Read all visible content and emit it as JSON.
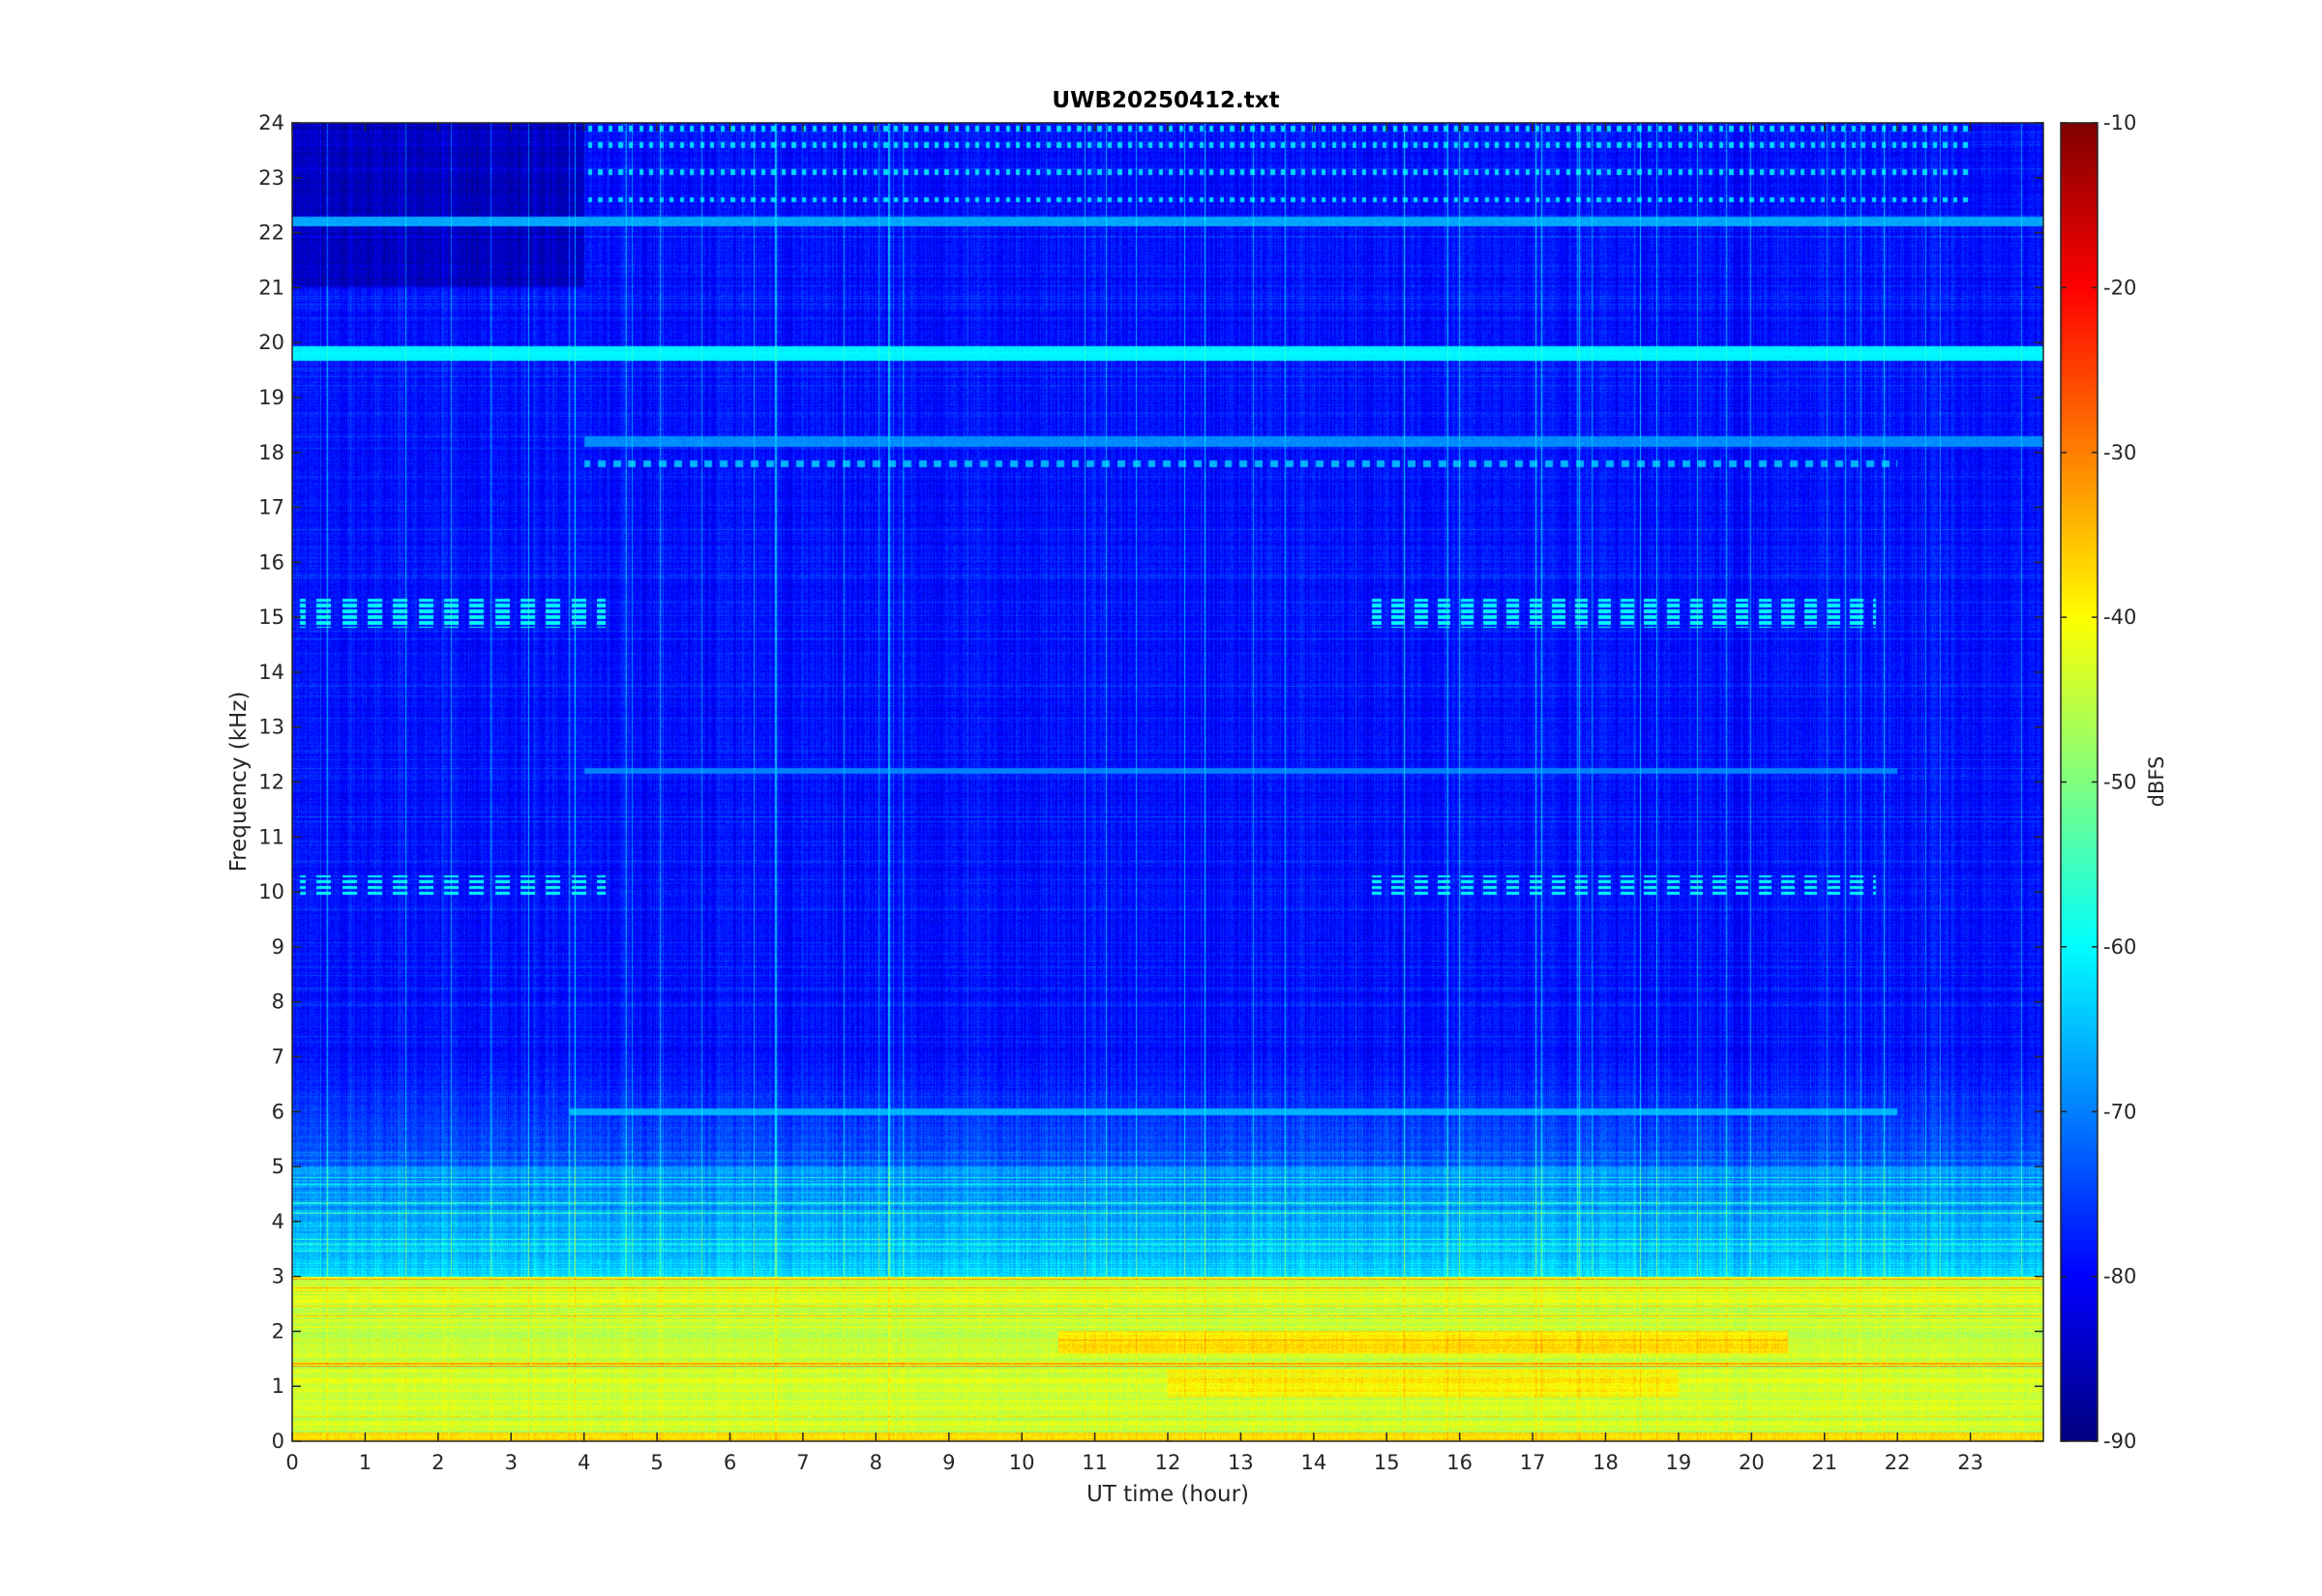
{
  "chart_data": {
    "type": "heatmap",
    "title": "UWB20250412.txt",
    "xlabel": "UT time (hour)",
    "ylabel": "Frequency (kHz)",
    "xlim": [
      0,
      24
    ],
    "ylim": [
      0,
      24
    ],
    "x_ticks": [
      "0",
      "1",
      "2",
      "3",
      "4",
      "5",
      "6",
      "7",
      "8",
      "9",
      "10",
      "11",
      "12",
      "13",
      "14",
      "15",
      "16",
      "17",
      "18",
      "19",
      "20",
      "21",
      "22",
      "23"
    ],
    "y_ticks": [
      "0",
      "1",
      "2",
      "3",
      "4",
      "5",
      "6",
      "7",
      "8",
      "9",
      "10",
      "11",
      "12",
      "13",
      "14",
      "15",
      "16",
      "17",
      "18",
      "19",
      "20",
      "21",
      "22",
      "23",
      "24"
    ],
    "colorbar": {
      "label": "dBFS",
      "range": [
        -90,
        -10
      ],
      "ticks": [
        "-10",
        "-20",
        "-30",
        "-40",
        "-50",
        "-60",
        "-70",
        "-80",
        "-90"
      ],
      "colormap": "jet"
    },
    "spectral_features": [
      {
        "name": "broadband-low-frequency-noise",
        "freq_khz": [
          0,
          3
        ],
        "level_dbfs": -42
      },
      {
        "name": "band-3-5khz",
        "freq_khz": [
          3,
          5
        ],
        "level_dbfs": -62
      },
      {
        "name": "constant-tone-19.8khz",
        "freq_khz": 19.8,
        "level_dbfs": -60
      },
      {
        "name": "tone-22.2khz",
        "freq_khz": 22.2,
        "level_dbfs": -66
      },
      {
        "name": "tone-18.2khz",
        "freq_khz": 18.2,
        "level_dbfs": -68
      },
      {
        "name": "pulsed-15khz-early",
        "freq_khz": 15.0,
        "hours": [
          0,
          4.3
        ],
        "level_dbfs": -62
      },
      {
        "name": "pulsed-15khz-late",
        "freq_khz": 15.0,
        "hours": [
          14.8,
          21.7
        ],
        "level_dbfs": -62
      },
      {
        "name": "pulsed-10khz-early",
        "freq_khz": 10.1,
        "hours": [
          0,
          4.3
        ],
        "level_dbfs": -62
      },
      {
        "name": "pulsed-10khz-late",
        "freq_khz": 10.1,
        "hours": [
          14.8,
          21.7
        ],
        "level_dbfs": -62
      },
      {
        "name": "dotted-tones-upper",
        "freq_khz": [
          22.5,
          24
        ],
        "hours": [
          4,
          23
        ],
        "level_dbfs": -62
      },
      {
        "name": "enhanced-1.8khz-band",
        "freq_khz": 1.8,
        "hours": [
          10.5,
          20.5
        ],
        "level_dbfs": -35
      },
      {
        "name": "background",
        "freq_khz": [
          5,
          24
        ],
        "level_dbfs": -78
      }
    ]
  }
}
